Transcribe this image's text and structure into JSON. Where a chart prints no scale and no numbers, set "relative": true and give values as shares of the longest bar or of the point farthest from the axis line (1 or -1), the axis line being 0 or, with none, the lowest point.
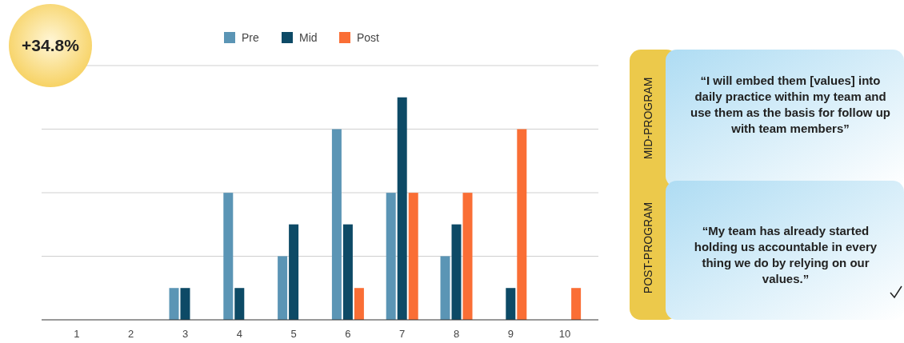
{
  "chart_data": {
    "type": "bar",
    "relative": true,
    "grid": "y",
    "legend": "top",
    "categories": [
      "1",
      "2",
      "3",
      "4",
      "5",
      "6",
      "7",
      "8",
      "9",
      "10"
    ],
    "series": [
      {
        "name": "Pre",
        "color": "#5b95b5",
        "values": [
          0,
          0,
          0.143,
          0.571,
          0.286,
          0.857,
          0.571,
          0.286,
          0,
          0
        ]
      },
      {
        "name": "Mid",
        "color": "#0d4a66",
        "values": [
          0,
          0,
          0.143,
          0.143,
          0.429,
          0.429,
          1,
          0.429,
          0.143,
          0
        ]
      },
      {
        "name": "Post",
        "color": "#fa6e35",
        "values": [
          0,
          0,
          0,
          0,
          0,
          0.143,
          0.571,
          0.571,
          0.857,
          0.143
        ]
      }
    ],
    "annotations": [
      "+34.8%",
      "MID-PROGRAM",
      "“I will embed them [values] into\ndaily practice within my team and\nuse them as the basis for follow up\nwith team members”",
      "POST-PROGRAM",
      "“My team has already started\nholding us accountable in every\nthing we do by relying on our\nvalues.”"
    ]
  }
}
